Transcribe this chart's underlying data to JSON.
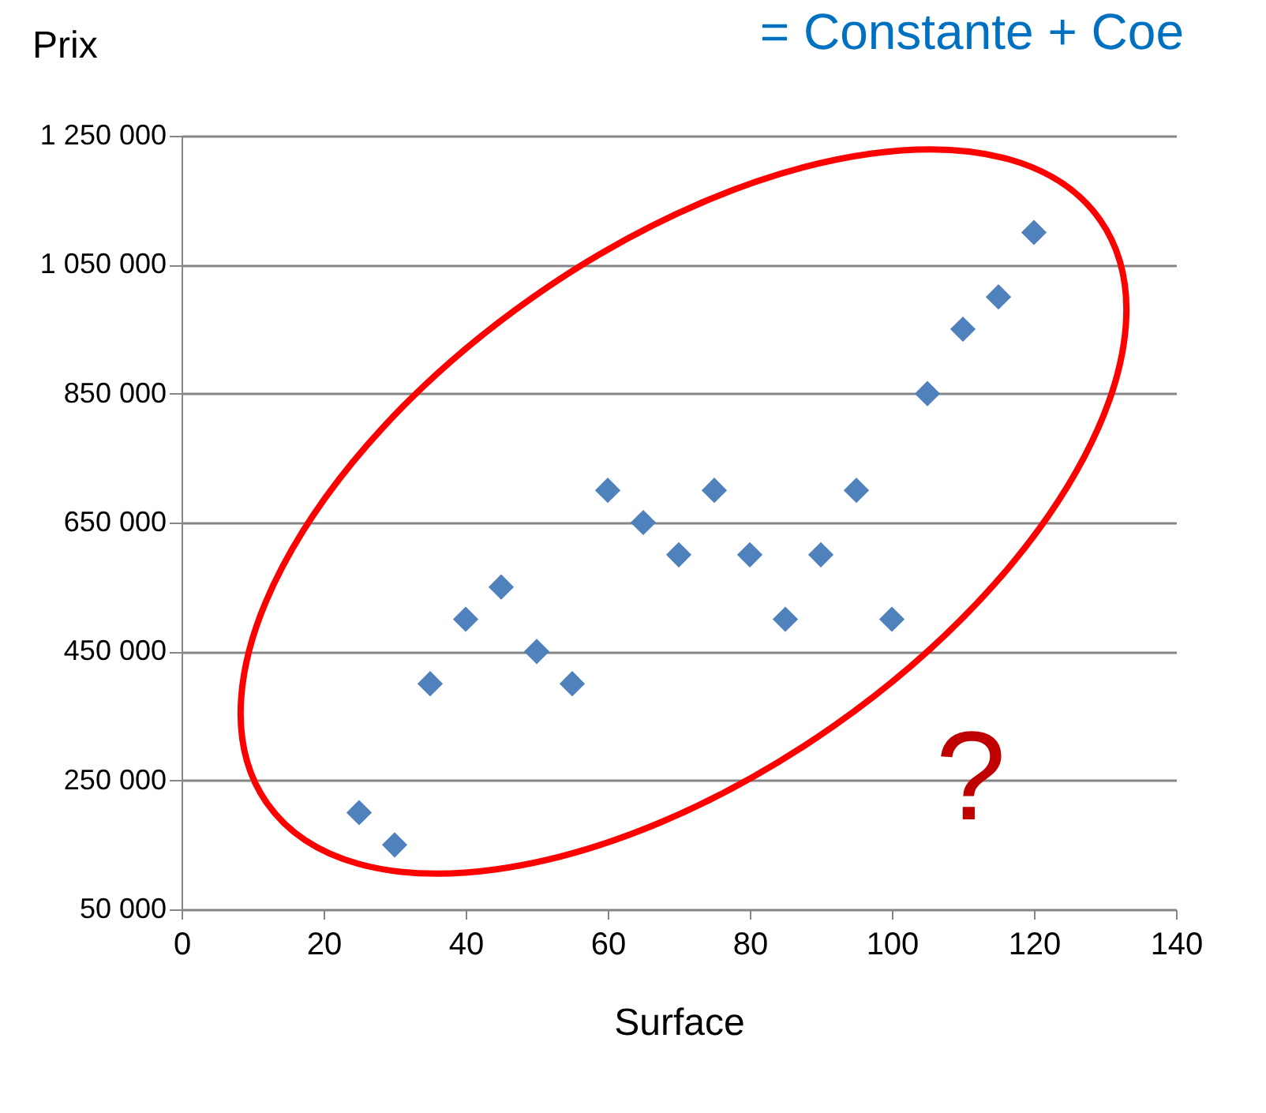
{
  "chart_data": {
    "type": "scatter",
    "title": "= Constante + Coe",
    "xlabel": "Surface",
    "ylabel": "Prix",
    "x": [
      25,
      30,
      35,
      40,
      45,
      50,
      55,
      60,
      65,
      70,
      75,
      80,
      85,
      90,
      95,
      100,
      105,
      110,
      115,
      120
    ],
    "series": [
      {
        "color": "#4f81bd",
        "values": [
          200000,
          150000,
          400000,
          500000,
          550000,
          450000,
          400000,
          700000,
          650000,
          600000,
          700000,
          600000,
          500000,
          600000,
          700000,
          500000,
          850000,
          950000,
          1000000,
          1100000
        ]
      }
    ],
    "xlim": [
      0,
      140
    ],
    "xticks": [
      0,
      20,
      40,
      60,
      80,
      100,
      120,
      140
    ],
    "ylim": [
      50000,
      1250000
    ],
    "yticks": [
      {
        "value": 50000,
        "label": "50 000"
      },
      {
        "value": 250000,
        "label": "250 000"
      },
      {
        "value": 450000,
        "label": "450 000"
      },
      {
        "value": 650000,
        "label": "650 000"
      },
      {
        "value": 850000,
        "label": "850 000"
      },
      {
        "value": 1050000,
        "label": "1 050 000"
      },
      {
        "value": 1250000,
        "label": "1 250 000"
      }
    ],
    "grid": "y",
    "marker": "diamond",
    "annotations": [
      "?"
    ]
  }
}
